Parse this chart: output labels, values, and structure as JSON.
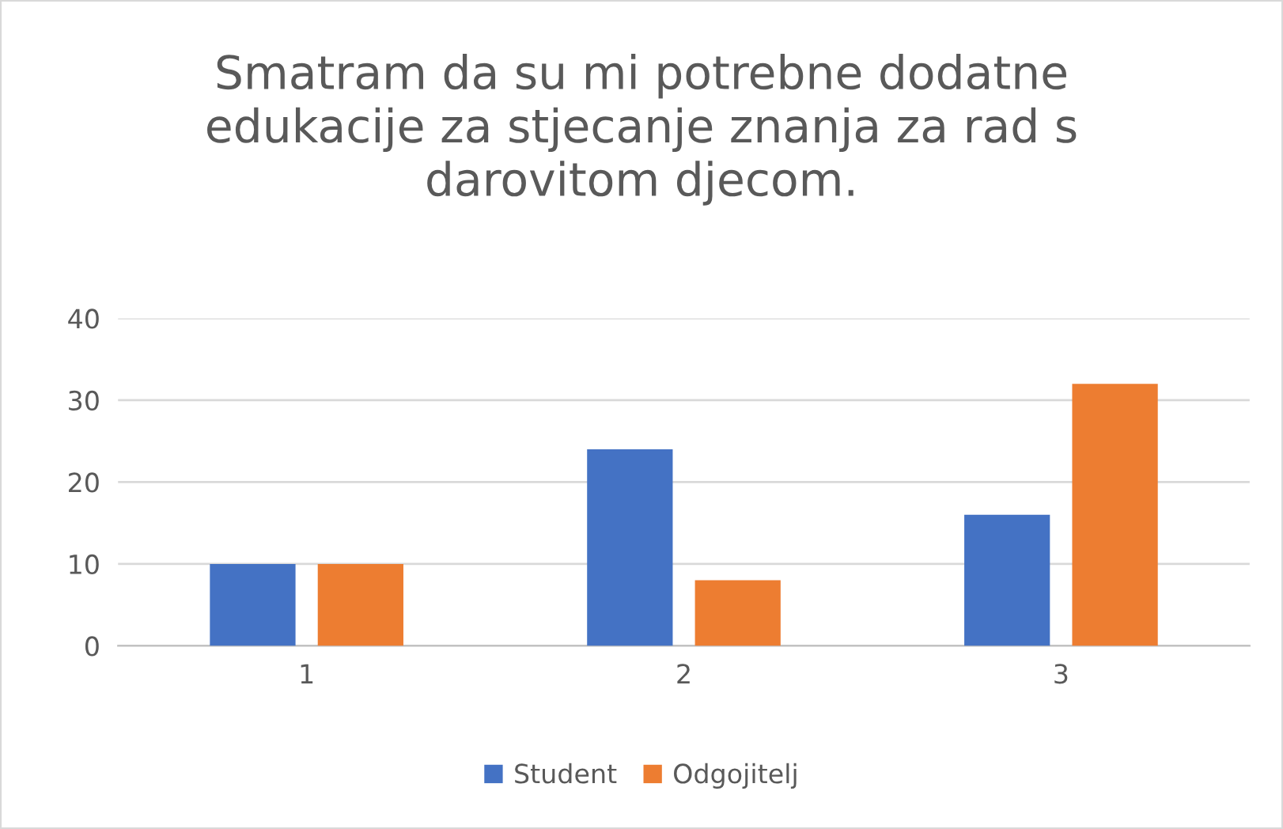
{
  "chart_data": {
    "type": "bar",
    "title": "Smatram da su mi potrebne dodatne edukacije za stjecanje znanja za rad s darovitom djecom.",
    "categories": [
      "1",
      "2",
      "3"
    ],
    "series": [
      {
        "name": "Student",
        "color": "#4472c4",
        "values": [
          10,
          24,
          16
        ]
      },
      {
        "name": "Odgojitelj",
        "color": "#ed7d31",
        "values": [
          10,
          8,
          32
        ]
      }
    ],
    "ylim": [
      0,
      40
    ],
    "yticks": [
      0,
      10,
      20,
      30,
      40
    ],
    "grid": "y",
    "legend": "bottom"
  }
}
